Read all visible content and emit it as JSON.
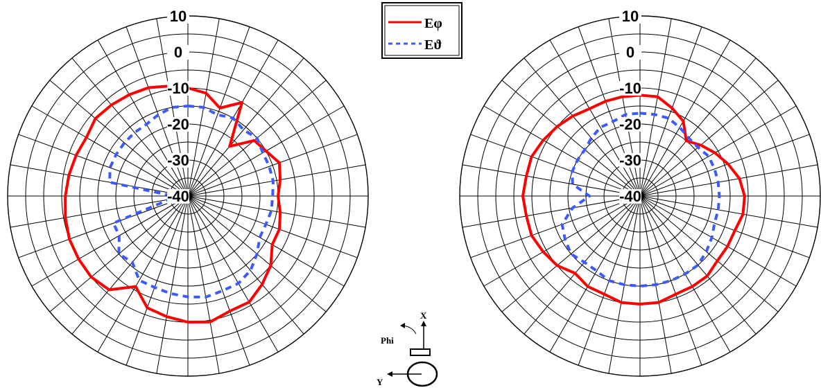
{
  "chart_data": [
    {
      "type": "polar",
      "r_ticks": [
        "10",
        "0",
        "-10",
        "-20",
        "-30",
        "-40"
      ],
      "rlim": [
        -40,
        10
      ],
      "angular_step_deg": 10,
      "grid": true,
      "series": [
        {
          "name": "Eφ",
          "color": "#ff0000",
          "style": "solid",
          "angle_deg": [
            0,
            10,
            20,
            30,
            40,
            50,
            60,
            70,
            80,
            90,
            100,
            110,
            120,
            130,
            140,
            150,
            160,
            170,
            180,
            190,
            200,
            210,
            220,
            230,
            240,
            250,
            260,
            270,
            280,
            290,
            300,
            310,
            320,
            330,
            340,
            350
          ],
          "values_db": [
            -10,
            -11,
            -14,
            -10,
            -22,
            -16,
            -15,
            -13,
            -14,
            -15,
            -14,
            -13,
            -13,
            -10,
            -8,
            -6,
            -6,
            -4.5,
            -5,
            -6,
            -7,
            -11,
            -6,
            -5,
            -5,
            -5,
            -5.5,
            -6,
            -6.5,
            -7,
            -7.5,
            -6.5,
            -7,
            -7.5,
            -8,
            -9
          ]
        },
        {
          "name": "Eϑ",
          "color": "#3b5bff",
          "style": "dashed",
          "angle_deg": [
            0,
            10,
            20,
            30,
            40,
            50,
            60,
            70,
            80,
            90,
            100,
            110,
            120,
            130,
            140,
            150,
            160,
            170,
            180,
            190,
            200,
            210,
            220,
            230,
            240,
            250,
            260,
            270,
            280,
            290,
            300,
            310,
            320,
            330,
            340,
            350
          ],
          "values_db": [
            -15,
            -15,
            -16,
            -15,
            -16,
            -15,
            -16,
            -16,
            -16,
            -16.5,
            -16.5,
            -17,
            -17,
            -15,
            -13,
            -12,
            -12,
            -11.5,
            -12,
            -12.5,
            -13,
            -13,
            -16,
            -15,
            -18,
            -18,
            -35,
            -36,
            -18,
            -17,
            -17,
            -17,
            -17,
            -17,
            -16,
            -15
          ]
        }
      ]
    },
    {
      "type": "polar",
      "r_ticks": [
        "10",
        "0",
        "-10",
        "-20",
        "-30",
        "-40"
      ],
      "rlim": [
        -40,
        10
      ],
      "angular_step_deg": 10,
      "grid": true,
      "series": [
        {
          "name": "Eφ",
          "color": "#ff0000",
          "style": "solid",
          "angle_deg": [
            0,
            10,
            20,
            30,
            40,
            50,
            60,
            70,
            80,
            90,
            100,
            110,
            120,
            130,
            140,
            150,
            160,
            170,
            180,
            190,
            200,
            210,
            220,
            230,
            240,
            250,
            260,
            270,
            280,
            290,
            300,
            310,
            320,
            330,
            340,
            350
          ],
          "values_db": [
            -12,
            -12,
            -14,
            -16,
            -20,
            -18,
            -16,
            -14,
            -12,
            -11,
            -11,
            -12,
            -12,
            -12,
            -11,
            -11,
            -11,
            -10,
            -10,
            -10,
            -11,
            -11,
            -12,
            -10,
            -9,
            -8,
            -8,
            -7.5,
            -8,
            -8,
            -9,
            -10,
            -11,
            -12,
            -12,
            -12
          ]
        },
        {
          "name": "Eϑ",
          "color": "#3b5bff",
          "style": "dashed",
          "angle_deg": [
            0,
            10,
            20,
            30,
            40,
            50,
            60,
            70,
            80,
            90,
            100,
            110,
            120,
            130,
            140,
            150,
            160,
            170,
            180,
            190,
            200,
            210,
            220,
            230,
            240,
            250,
            260,
            270,
            280,
            290,
            300,
            310,
            320,
            330,
            340,
            350
          ],
          "values_db": [
            -17,
            -17,
            -17,
            -18,
            -19,
            -19,
            -18,
            -18,
            -18,
            -18,
            -18,
            -18,
            -17,
            -16,
            -15,
            -15,
            -15,
            -15,
            -15,
            -15,
            -15,
            -16,
            -16,
            -15,
            -16,
            -17,
            -21,
            -26,
            -21,
            -20,
            -20,
            -20,
            -19,
            -18,
            -18,
            -17
          ]
        }
      ]
    }
  ],
  "legend": {
    "items": [
      {
        "label": "Eφ",
        "color": "#ff0000",
        "style": "solid"
      },
      {
        "label": "Eϑ",
        "color": "#3b5bff",
        "style": "dashed"
      }
    ]
  },
  "axes_diagram": {
    "x_label": "X",
    "y_label": "Y",
    "phi_label": "Phi"
  }
}
